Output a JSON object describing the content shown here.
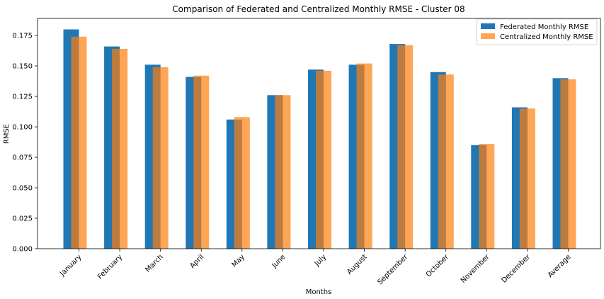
{
  "chart_data": {
    "type": "bar",
    "title": "Comparison of Federated and Centralized Monthly RMSE - Cluster 08",
    "xlabel": "Months",
    "ylabel": "RMSE",
    "categories": [
      "January",
      "February",
      "March",
      "April",
      "May",
      "June",
      "July",
      "August",
      "September",
      "October",
      "November",
      "December",
      "Average"
    ],
    "series": [
      {
        "name": "Federated Monthly RMSE",
        "color": "#1f77b4",
        "values": [
          0.18,
          0.166,
          0.151,
          0.141,
          0.106,
          0.126,
          0.147,
          0.151,
          0.168,
          0.145,
          0.085,
          0.116,
          0.14
        ]
      },
      {
        "name": "Centralized Monthly RMSE",
        "color": "#ff7f0e",
        "alpha": 0.7,
        "values": [
          0.174,
          0.164,
          0.149,
          0.142,
          0.108,
          0.126,
          0.146,
          0.152,
          0.167,
          0.143,
          0.086,
          0.115,
          0.139
        ]
      }
    ],
    "ylim": [
      0,
      0.189
    ],
    "yticks": [
      "0.000",
      "0.025",
      "0.050",
      "0.075",
      "0.100",
      "0.125",
      "0.150",
      "0.175"
    ],
    "grid": false,
    "legend_position": "top-right"
  }
}
